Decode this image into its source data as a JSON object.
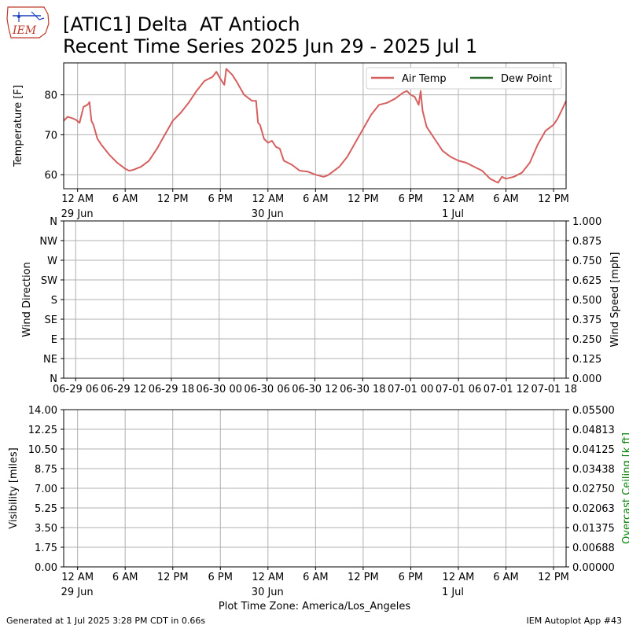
{
  "logo": {
    "text": "IEM",
    "colors": {
      "border": "#c0392b",
      "text": "#c0392b",
      "detail": "#1f3fbf"
    }
  },
  "title_line1": "[ATIC1] Delta  AT Antioch",
  "title_line2": "Recent Time Series 2025 Jun 29 - 2025 Jul 1",
  "footer": {
    "left": "Generated at 1 Jul 2025 3:28 PM CDT in 0.66s",
    "right": "IEM Autoplot App #43"
  },
  "x_axis_label": "Plot Time Zone: America/Los_Angeles",
  "chart_data": [
    {
      "type": "line",
      "ylabel": "Temperature [F]",
      "xlim": [
        "2025-06-28T22:15",
        "2025-07-01T13:35"
      ],
      "ylim": [
        56.5,
        88
      ],
      "yticks": [
        60,
        70,
        80
      ],
      "grid": true,
      "legend": {
        "placement": "top-right",
        "entries": [
          "Air Temp",
          "Dew Point"
        ]
      },
      "xticks": [
        {
          "t": "2025-06-29T00:00",
          "label": "12 AM",
          "sub": "29 Jun"
        },
        {
          "t": "2025-06-29T06:00",
          "label": "6 AM"
        },
        {
          "t": "2025-06-29T12:00",
          "label": "12 PM"
        },
        {
          "t": "2025-06-29T18:00",
          "label": "6 PM"
        },
        {
          "t": "2025-06-30T00:00",
          "label": "12 AM",
          "sub": "30 Jun"
        },
        {
          "t": "2025-06-30T06:00",
          "label": "6 AM"
        },
        {
          "t": "2025-06-30T12:00",
          "label": "12 PM"
        },
        {
          "t": "2025-06-30T18:00",
          "label": "6 PM"
        },
        {
          "t": "2025-07-01T00:00",
          "label": "12 AM",
          "sub": "1 Jul"
        },
        {
          "t": "2025-07-01T06:00",
          "label": "6 AM"
        },
        {
          "t": "2025-07-01T12:00",
          "label": "12 PM"
        }
      ],
      "series": [
        {
          "name": "Air Temp",
          "color": "#d65f5f",
          "points": [
            [
              "2025-06-28T22:15",
              73.5
            ],
            [
              "2025-06-28T22:45",
              74.5
            ],
            [
              "2025-06-28T23:15",
              74.2
            ],
            [
              "2025-06-28T23:45",
              73.8
            ],
            [
              "2025-06-29T00:15",
              73.0
            ],
            [
              "2025-06-29T00:45",
              77.0
            ],
            [
              "2025-06-29T01:15",
              77.5
            ],
            [
              "2025-06-29T01:30",
              78.2
            ],
            [
              "2025-06-29T01:45",
              73.5
            ],
            [
              "2025-06-29T02:00",
              72.5
            ],
            [
              "2025-06-29T02:30",
              69.0
            ],
            [
              "2025-06-29T03:00",
              67.5
            ],
            [
              "2025-06-29T04:00",
              65.0
            ],
            [
              "2025-06-29T05:00",
              63.0
            ],
            [
              "2025-06-29T06:00",
              61.5
            ],
            [
              "2025-06-29T06:30",
              61.0
            ],
            [
              "2025-06-29T07:00",
              61.2
            ],
            [
              "2025-06-29T08:00",
              62.0
            ],
            [
              "2025-06-29T09:00",
              63.5
            ],
            [
              "2025-06-29T10:00",
              66.5
            ],
            [
              "2025-06-29T11:00",
              70.0
            ],
            [
              "2025-06-29T12:00",
              73.5
            ],
            [
              "2025-06-29T13:00",
              75.5
            ],
            [
              "2025-06-29T14:00",
              78.0
            ],
            [
              "2025-06-29T15:00",
              81.0
            ],
            [
              "2025-06-29T16:00",
              83.5
            ],
            [
              "2025-06-29T17:00",
              84.5
            ],
            [
              "2025-06-29T17:30",
              85.8
            ],
            [
              "2025-06-29T18:00",
              84.0
            ],
            [
              "2025-06-29T18:30",
              82.5
            ],
            [
              "2025-06-29T18:45",
              86.5
            ],
            [
              "2025-06-29T19:30",
              85.0
            ],
            [
              "2025-06-29T20:00",
              83.5
            ],
            [
              "2025-06-29T21:00",
              80.0
            ],
            [
              "2025-06-29T22:00",
              78.5
            ],
            [
              "2025-06-29T22:30",
              78.5
            ],
            [
              "2025-06-29T22:45",
              73.0
            ],
            [
              "2025-06-29T23:00",
              72.5
            ],
            [
              "2025-06-29T23:30",
              69.0
            ],
            [
              "2025-06-30T00:00",
              68.0
            ],
            [
              "2025-06-30T00:30",
              68.5
            ],
            [
              "2025-06-30T01:00",
              67.0
            ],
            [
              "2025-06-30T01:30",
              66.5
            ],
            [
              "2025-06-30T02:00",
              63.5
            ],
            [
              "2025-06-30T03:00",
              62.5
            ],
            [
              "2025-06-30T04:00",
              61.0
            ],
            [
              "2025-06-30T05:00",
              60.8
            ],
            [
              "2025-06-30T06:00",
              60.0
            ],
            [
              "2025-06-30T07:00",
              59.5
            ],
            [
              "2025-06-30T07:30",
              59.8
            ],
            [
              "2025-06-30T08:00",
              60.5
            ],
            [
              "2025-06-30T09:00",
              62.0
            ],
            [
              "2025-06-30T10:00",
              64.5
            ],
            [
              "2025-06-30T11:00",
              68.0
            ],
            [
              "2025-06-30T12:00",
              71.5
            ],
            [
              "2025-06-30T13:00",
              75.0
            ],
            [
              "2025-06-30T14:00",
              77.5
            ],
            [
              "2025-06-30T15:00",
              78.0
            ],
            [
              "2025-06-30T16:00",
              79.0
            ],
            [
              "2025-06-30T17:00",
              80.5
            ],
            [
              "2025-06-30T17:30",
              81.0
            ],
            [
              "2025-06-30T18:00",
              80.0
            ],
            [
              "2025-06-30T18:30",
              79.5
            ],
            [
              "2025-06-30T19:00",
              77.5
            ],
            [
              "2025-06-30T19:15",
              81.0
            ],
            [
              "2025-06-30T19:30",
              76.0
            ],
            [
              "2025-06-30T20:00",
              72.0
            ],
            [
              "2025-06-30T21:00",
              69.0
            ],
            [
              "2025-06-30T22:00",
              66.0
            ],
            [
              "2025-06-30T23:00",
              64.5
            ],
            [
              "2025-07-01T00:00",
              63.5
            ],
            [
              "2025-07-01T01:00",
              63.0
            ],
            [
              "2025-07-01T02:00",
              62.0
            ],
            [
              "2025-07-01T03:00",
              61.0
            ],
            [
              "2025-07-01T04:00",
              59.0
            ],
            [
              "2025-07-01T05:00",
              58.0
            ],
            [
              "2025-07-01T05:30",
              59.5
            ],
            [
              "2025-07-01T06:00",
              59.0
            ],
            [
              "2025-07-01T07:00",
              59.5
            ],
            [
              "2025-07-01T08:00",
              60.5
            ],
            [
              "2025-07-01T09:00",
              63.0
            ],
            [
              "2025-07-01T10:00",
              67.5
            ],
            [
              "2025-07-01T11:00",
              71.0
            ],
            [
              "2025-07-01T12:00",
              72.5
            ],
            [
              "2025-07-01T12:30",
              74.0
            ],
            [
              "2025-07-01T13:00",
              76.0
            ],
            [
              "2025-07-01T13:35",
              78.5
            ]
          ]
        },
        {
          "name": "Dew Point",
          "color": "#2d6a2d",
          "points": []
        }
      ]
    },
    {
      "type": "line",
      "ylabel": "Wind Direction",
      "ylabel_right": "Wind Speed [mph]",
      "xlim": [
        "2025-06-29T04:30",
        "2025-07-01T19:30"
      ],
      "yticks_left": [
        "N",
        "NE",
        "E",
        "SE",
        "S",
        "SW",
        "W",
        "NW",
        "N"
      ],
      "yticks_right": [
        "0.000",
        "0.125",
        "0.250",
        "0.375",
        "0.500",
        "0.625",
        "0.750",
        "0.875",
        "1.000"
      ],
      "xticks": [
        "06-29 06",
        "06-29 12",
        "06-29 18",
        "06-30 00",
        "06-30 06",
        "06-30 12",
        "06-30 18",
        "07-01 00",
        "07-01 06",
        "07-01 12",
        "07-01 18"
      ],
      "grid": true,
      "series": []
    },
    {
      "type": "line",
      "ylabel": "Visibility [miles]",
      "ylabel_right": "Overcast Ceiling [k ft]",
      "ylabel_right_color": "#008000",
      "xlim": [
        "2025-06-28T22:15",
        "2025-07-01T13:35"
      ],
      "yticks_left": [
        "0.00",
        "1.75",
        "3.50",
        "5.25",
        "7.00",
        "8.75",
        "10.50",
        "12.25",
        "14.00"
      ],
      "yticks_right": [
        "0.00000",
        "0.00688",
        "0.01375",
        "0.02063",
        "0.02750",
        "0.03438",
        "0.04125",
        "0.04813",
        "0.05500"
      ],
      "grid": true,
      "series": []
    }
  ]
}
